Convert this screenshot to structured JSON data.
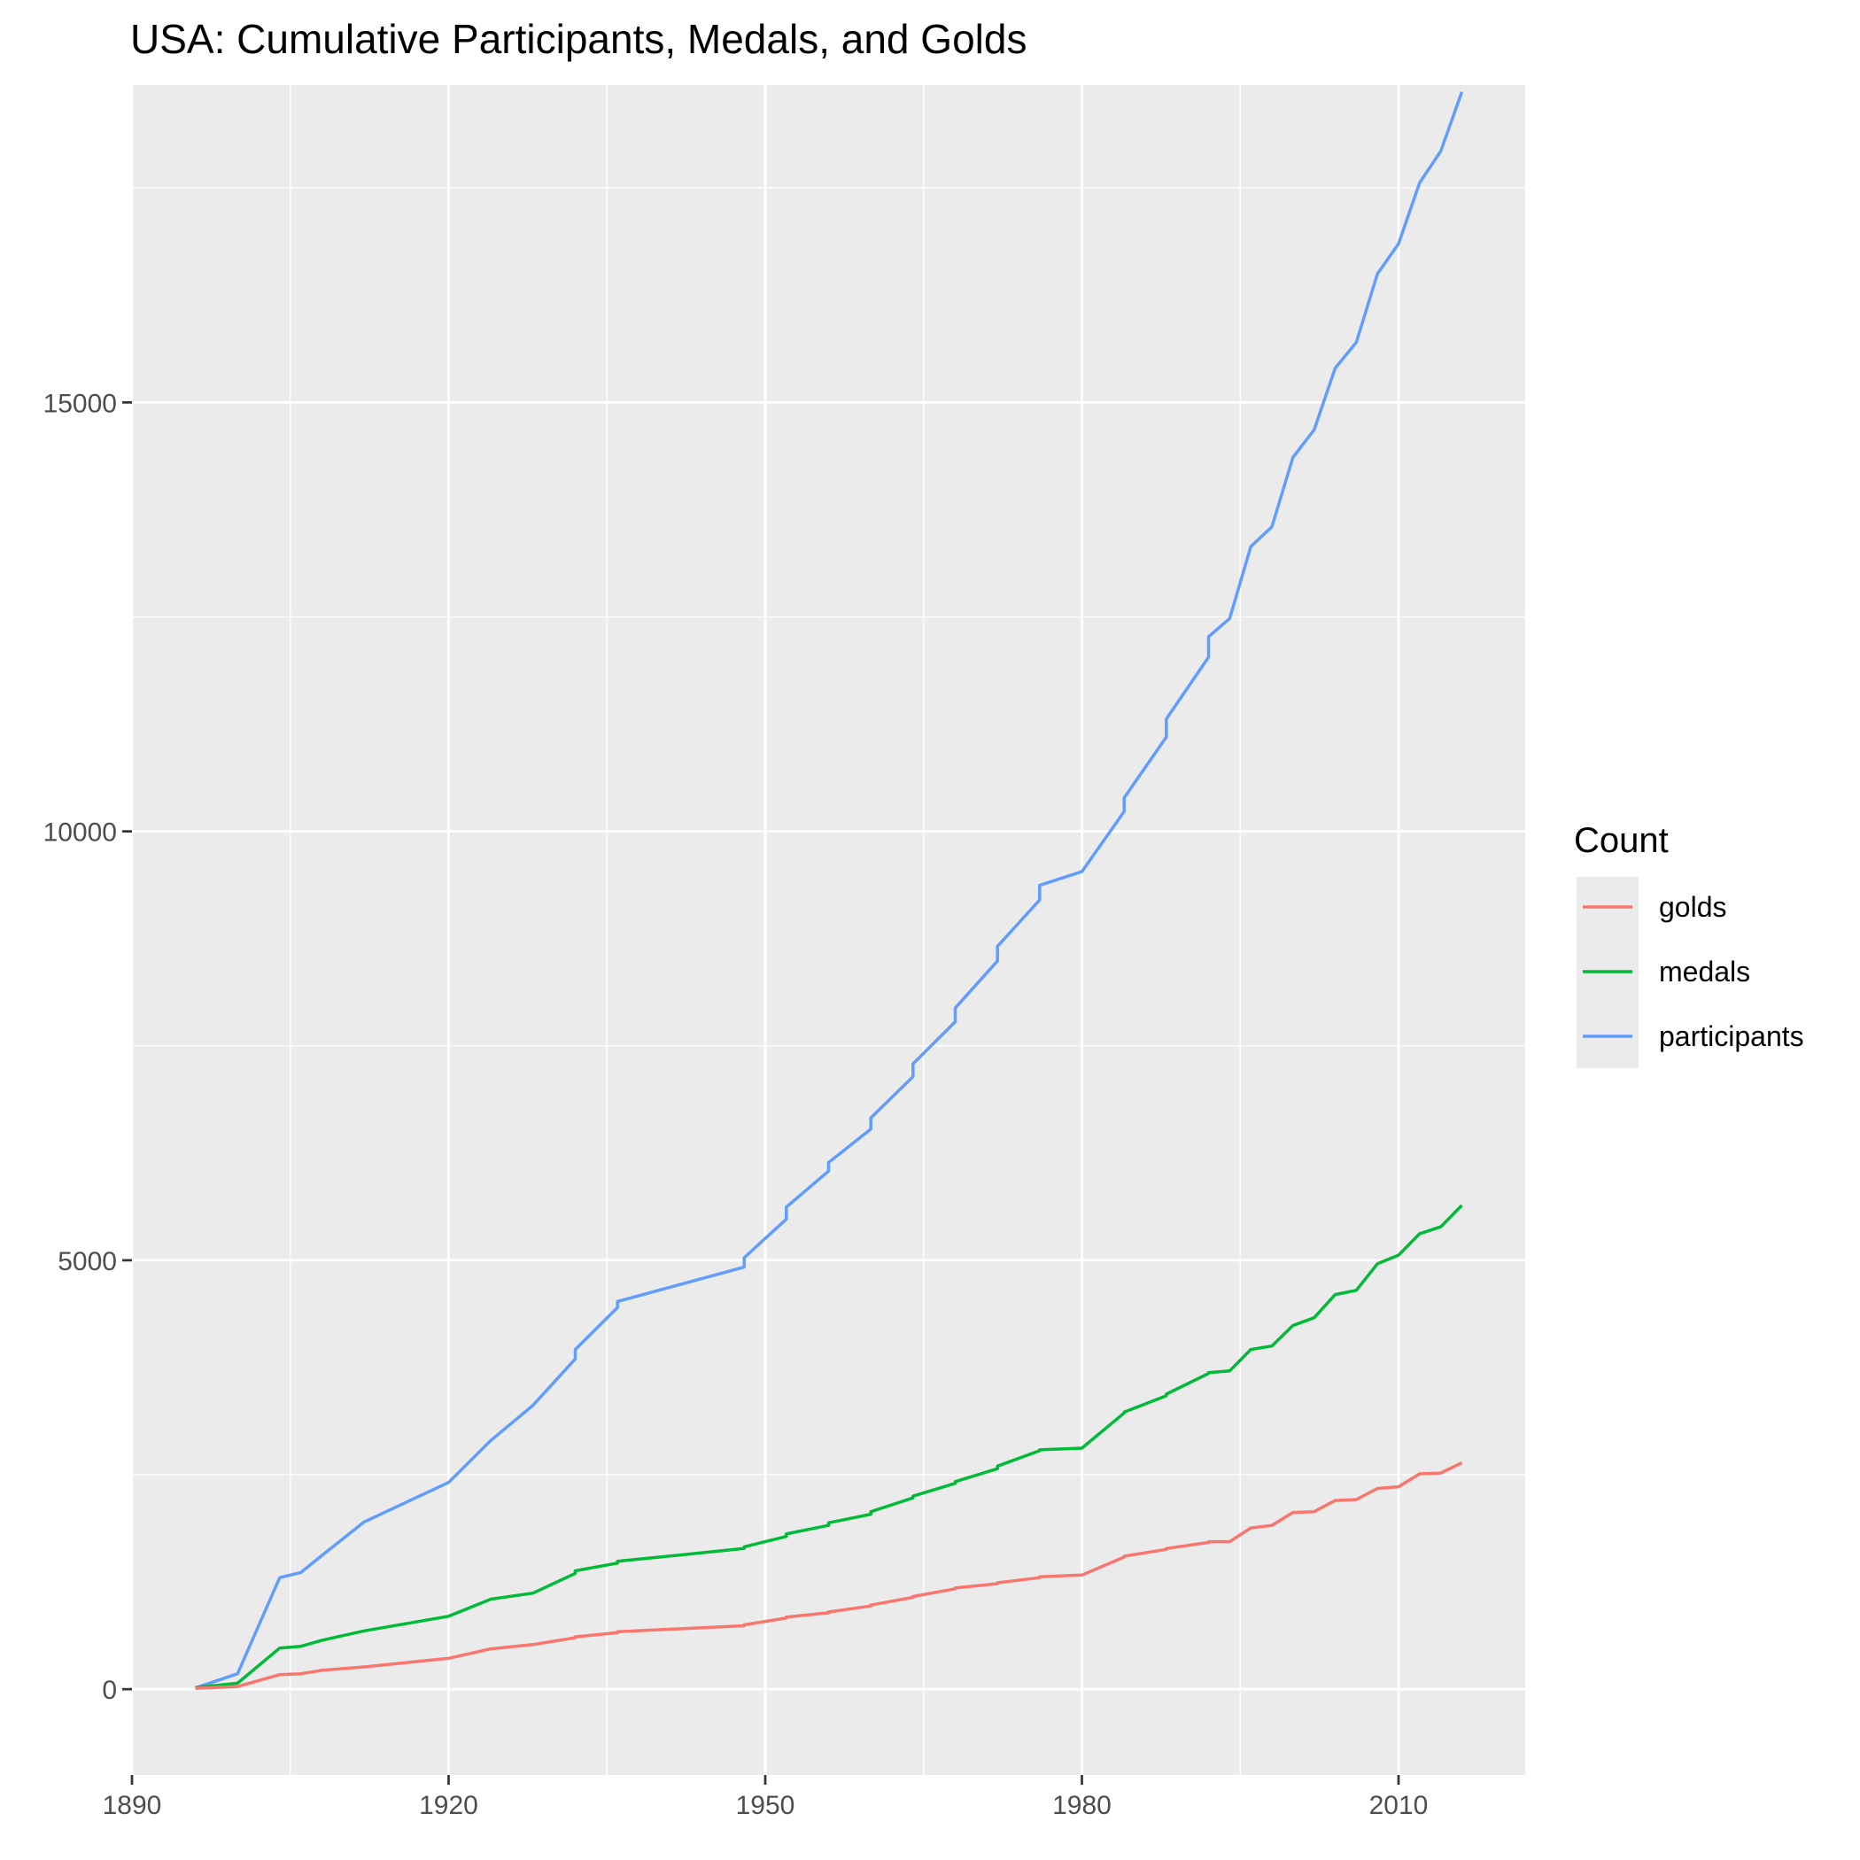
{
  "chart_data": {
    "type": "line",
    "title": "USA: Cumulative Participants, Medals, and Golds",
    "xlabel": "",
    "ylabel": "",
    "xlim": [
      1890,
      2022
    ],
    "ylim": [
      -1000,
      18700
    ],
    "x_ticks": [
      1890,
      1920,
      1950,
      1980,
      2010
    ],
    "x_tick_labels": [
      "1890",
      "1920",
      "1950",
      "1980",
      "2010"
    ],
    "y_ticks": [
      0,
      5000,
      10000,
      15000
    ],
    "y_tick_labels": [
      "0",
      "5000",
      "10000",
      "15000"
    ],
    "grid": true,
    "legend": {
      "title": "Count",
      "position": "right",
      "entries": [
        "golds",
        "medals",
        "participants"
      ]
    },
    "colors": {
      "golds": "#F8766D",
      "medals": "#00BA38",
      "participants": "#619CFF",
      "panel": "#EBEBEB",
      "grid": "#FFFFFF"
    },
    "series": [
      {
        "name": "participants",
        "points": [
          [
            1896,
            14
          ],
          [
            1900,
            180
          ],
          [
            1904,
            1300
          ],
          [
            1906,
            1360
          ],
          [
            1908,
            1560
          ],
          [
            1912,
            1950
          ],
          [
            1920,
            2410
          ],
          [
            1924,
            2900
          ],
          [
            1928,
            3310
          ],
          [
            1932,
            3850
          ],
          [
            1932,
            3960
          ],
          [
            1936,
            4450
          ],
          [
            1936,
            4520
          ],
          [
            1948,
            4920
          ],
          [
            1948,
            5030
          ],
          [
            1952,
            5480
          ],
          [
            1952,
            5620
          ],
          [
            1956,
            6040
          ],
          [
            1956,
            6140
          ],
          [
            1960,
            6530
          ],
          [
            1960,
            6660
          ],
          [
            1964,
            7140
          ],
          [
            1964,
            7290
          ],
          [
            1968,
            7780
          ],
          [
            1968,
            7940
          ],
          [
            1972,
            8490
          ],
          [
            1972,
            8660
          ],
          [
            1976,
            9200
          ],
          [
            1976,
            9370
          ],
          [
            1980,
            9530
          ],
          [
            1984,
            10230
          ],
          [
            1984,
            10390
          ],
          [
            1988,
            11100
          ],
          [
            1988,
            11310
          ],
          [
            1992,
            12030
          ],
          [
            1992,
            12270
          ],
          [
            1994,
            12480
          ],
          [
            1996,
            13320
          ],
          [
            1998,
            13550
          ],
          [
            2000,
            14360
          ],
          [
            2002,
            14680
          ],
          [
            2004,
            15400
          ],
          [
            2006,
            15700
          ],
          [
            2008,
            16500
          ],
          [
            2010,
            16850
          ],
          [
            2012,
            17560
          ],
          [
            2014,
            17930
          ],
          [
            2016,
            18620
          ]
        ]
      },
      {
        "name": "medals",
        "points": [
          [
            1896,
            20
          ],
          [
            1900,
            70
          ],
          [
            1904,
            480
          ],
          [
            1906,
            500
          ],
          [
            1908,
            570
          ],
          [
            1912,
            680
          ],
          [
            1920,
            850
          ],
          [
            1924,
            1050
          ],
          [
            1928,
            1120
          ],
          [
            1932,
            1350
          ],
          [
            1932,
            1380
          ],
          [
            1936,
            1470
          ],
          [
            1936,
            1490
          ],
          [
            1948,
            1640
          ],
          [
            1948,
            1660
          ],
          [
            1952,
            1780
          ],
          [
            1952,
            1810
          ],
          [
            1956,
            1910
          ],
          [
            1956,
            1940
          ],
          [
            1960,
            2040
          ],
          [
            1960,
            2070
          ],
          [
            1964,
            2230
          ],
          [
            1964,
            2250
          ],
          [
            1968,
            2400
          ],
          [
            1968,
            2420
          ],
          [
            1972,
            2570
          ],
          [
            1972,
            2600
          ],
          [
            1976,
            2780
          ],
          [
            1976,
            2790
          ],
          [
            1980,
            2810
          ],
          [
            1984,
            3220
          ],
          [
            1984,
            3230
          ],
          [
            1988,
            3420
          ],
          [
            1988,
            3440
          ],
          [
            1992,
            3680
          ],
          [
            1992,
            3690
          ],
          [
            1994,
            3710
          ],
          [
            1996,
            3960
          ],
          [
            1998,
            4000
          ],
          [
            2000,
            4240
          ],
          [
            2002,
            4330
          ],
          [
            2004,
            4600
          ],
          [
            2006,
            4650
          ],
          [
            2008,
            4960
          ],
          [
            2010,
            5060
          ],
          [
            2012,
            5310
          ],
          [
            2014,
            5390
          ],
          [
            2016,
            5640
          ]
        ]
      },
      {
        "name": "golds",
        "points": [
          [
            1896,
            11
          ],
          [
            1900,
            30
          ],
          [
            1904,
            170
          ],
          [
            1906,
            180
          ],
          [
            1908,
            220
          ],
          [
            1912,
            260
          ],
          [
            1920,
            360
          ],
          [
            1924,
            470
          ],
          [
            1928,
            520
          ],
          [
            1932,
            600
          ],
          [
            1932,
            610
          ],
          [
            1936,
            660
          ],
          [
            1936,
            670
          ],
          [
            1948,
            740
          ],
          [
            1948,
            750
          ],
          [
            1952,
            830
          ],
          [
            1952,
            840
          ],
          [
            1956,
            890
          ],
          [
            1956,
            900
          ],
          [
            1960,
            970
          ],
          [
            1960,
            980
          ],
          [
            1964,
            1070
          ],
          [
            1964,
            1080
          ],
          [
            1968,
            1170
          ],
          [
            1968,
            1180
          ],
          [
            1972,
            1230
          ],
          [
            1972,
            1240
          ],
          [
            1976,
            1300
          ],
          [
            1976,
            1310
          ],
          [
            1980,
            1330
          ],
          [
            1984,
            1540
          ],
          [
            1984,
            1550
          ],
          [
            1988,
            1630
          ],
          [
            1988,
            1640
          ],
          [
            1992,
            1710
          ],
          [
            1992,
            1720
          ],
          [
            1994,
            1720
          ],
          [
            1996,
            1880
          ],
          [
            1998,
            1910
          ],
          [
            2000,
            2060
          ],
          [
            2002,
            2070
          ],
          [
            2004,
            2200
          ],
          [
            2006,
            2210
          ],
          [
            2008,
            2340
          ],
          [
            2010,
            2360
          ],
          [
            2012,
            2510
          ],
          [
            2014,
            2520
          ],
          [
            2016,
            2640
          ]
        ]
      }
    ]
  }
}
